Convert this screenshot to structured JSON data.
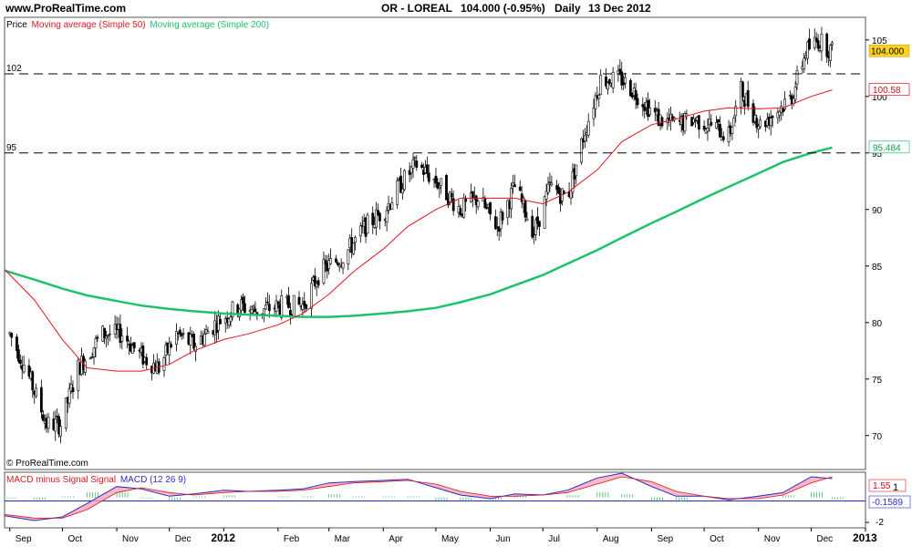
{
  "header": {
    "site": "www.ProRealTime.com",
    "instrument": "OR - LOREAL",
    "last_quote": "104.000 (-0.95%)",
    "period": "Daily",
    "date": "13 Dec 2012"
  },
  "price_panel": {
    "legend_price": "Price",
    "legend_ma50": "Moving average (Simple 50)",
    "legend_ma200": "Moving average (Simple 200)",
    "copyright": "© ProRealTime.com",
    "last_price_label": "104.000",
    "ma50_label": "100.58",
    "ma200_label": "95.484",
    "hline_upper_label": "102",
    "hline_lower_label": "95",
    "colors": {
      "candle": "#000000",
      "ma50": "#e0161e",
      "ma200": "#1ec26a",
      "last_price_bg": "#ffd21f"
    }
  },
  "macd_panel": {
    "legend_hist": "MACD minus Signal Signal",
    "legend_macd": "MACD (12 26 9)",
    "value_label_1": "1.55",
    "value_label_2": "1",
    "value_label_3": "-0.1589",
    "y_ticks": [
      "0",
      "-2"
    ]
  },
  "x_axis_labels": [
    "Sep",
    "Oct",
    "Nov",
    "Dec",
    "2012",
    "Feb",
    "Mar",
    "Apr",
    "May",
    "Jun",
    "Jul",
    "Aug",
    "Sep",
    "Oct",
    "Nov",
    "Dec",
    "2013"
  ],
  "chart_data": [
    {
      "type": "candlestick",
      "title": "OR - LOREAL",
      "x_range": [
        "2011-08-29",
        "2013-01-01"
      ],
      "ylim": [
        67,
        107
      ],
      "y_ticks": [
        70,
        75,
        80,
        85,
        90,
        95,
        100,
        105
      ],
      "horizontal_lines": [
        102,
        95
      ],
      "anchor_prices": [
        [
          "2011-09-01",
          79
        ],
        [
          "2011-09-10",
          76
        ],
        [
          "2011-09-22",
          71
        ],
        [
          "2011-09-30",
          71
        ],
        [
          "2011-10-10",
          76
        ],
        [
          "2011-10-24",
          79
        ],
        [
          "2011-11-04",
          79
        ],
        [
          "2011-11-15",
          77
        ],
        [
          "2011-11-25",
          76
        ],
        [
          "2011-12-05",
          79
        ],
        [
          "2011-12-15",
          78
        ],
        [
          "2011-12-28",
          80
        ],
        [
          "2012-01-10",
          81.5
        ],
        [
          "2012-01-20",
          81
        ],
        [
          "2012-02-03",
          81.5
        ],
        [
          "2012-02-15",
          81.5
        ],
        [
          "2012-02-25",
          84.5
        ],
        [
          "2012-03-10",
          86
        ],
        [
          "2012-03-22",
          88.5
        ],
        [
          "2012-04-02",
          90
        ],
        [
          "2012-04-12",
          92.5
        ],
        [
          "2012-04-20",
          94
        ],
        [
          "2012-05-01",
          92.5
        ],
        [
          "2012-05-15",
          90
        ],
        [
          "2012-05-25",
          91
        ],
        [
          "2012-06-05",
          88.5
        ],
        [
          "2012-06-15",
          92
        ],
        [
          "2012-06-26",
          88
        ],
        [
          "2012-07-05",
          92
        ],
        [
          "2012-07-15",
          91
        ],
        [
          "2012-07-25",
          97
        ],
        [
          "2012-08-03",
          101.5
        ],
        [
          "2012-08-15",
          101.5
        ],
        [
          "2012-08-25",
          100
        ],
        [
          "2012-09-05",
          98
        ],
        [
          "2012-09-15",
          97.5
        ],
        [
          "2012-09-25",
          98
        ],
        [
          "2012-10-05",
          97.5
        ],
        [
          "2012-10-15",
          96.5
        ],
        [
          "2012-10-22",
          100.5
        ],
        [
          "2012-11-02",
          97.5
        ],
        [
          "2012-11-10",
          98.5
        ],
        [
          "2012-11-20",
          100
        ],
        [
          "2012-11-28",
          104
        ],
        [
          "2012-12-05",
          105
        ],
        [
          "2012-12-13",
          104
        ]
      ],
      "series": [
        {
          "name": "Moving average (Simple 50)",
          "points": [
            [
              "2011-08-29",
              84.7
            ],
            [
              "2011-09-15",
              82
            ],
            [
              "2011-10-01",
              78.5
            ],
            [
              "2011-10-15",
              76
            ],
            [
              "2011-11-01",
              75.7
            ],
            [
              "2011-11-15",
              75.7
            ],
            [
              "2011-12-01",
              76.3
            ],
            [
              "2011-12-15",
              77.5
            ],
            [
              "2012-01-01",
              78.5
            ],
            [
              "2012-01-15",
              79
            ],
            [
              "2012-02-01",
              79.8
            ],
            [
              "2012-02-15",
              80.8
            ],
            [
              "2012-03-01",
              82.5
            ],
            [
              "2012-03-15",
              84.5
            ],
            [
              "2012-04-01",
              86.5
            ],
            [
              "2012-04-15",
              88.5
            ],
            [
              "2012-05-01",
              90
            ],
            [
              "2012-05-15",
              91
            ],
            [
              "2012-06-01",
              91
            ],
            [
              "2012-06-15",
              91
            ],
            [
              "2012-07-01",
              90.5
            ],
            [
              "2012-07-15",
              91.5
            ],
            [
              "2012-08-01",
              93.5
            ],
            [
              "2012-08-15",
              96
            ],
            [
              "2012-09-01",
              97.5
            ],
            [
              "2012-09-15",
              98
            ],
            [
              "2012-10-01",
              98.7
            ],
            [
              "2012-10-15",
              99
            ],
            [
              "2012-11-01",
              98.9
            ],
            [
              "2012-11-15",
              99
            ],
            [
              "2012-12-01",
              100
            ],
            [
              "2012-12-13",
              100.58
            ]
          ]
        },
        {
          "name": "Moving average (Simple 200)",
          "points": [
            [
              "2011-08-29",
              84.6
            ],
            [
              "2011-09-15",
              83.8
            ],
            [
              "2011-10-01",
              83
            ],
            [
              "2011-10-15",
              82.4
            ],
            [
              "2011-11-01",
              81.9
            ],
            [
              "2011-11-15",
              81.5
            ],
            [
              "2011-12-01",
              81.2
            ],
            [
              "2011-12-15",
              81
            ],
            [
              "2012-01-01",
              80.8
            ],
            [
              "2012-01-15",
              80.7
            ],
            [
              "2012-02-01",
              80.6
            ],
            [
              "2012-02-15",
              80.5
            ],
            [
              "2012-03-01",
              80.5
            ],
            [
              "2012-03-15",
              80.6
            ],
            [
              "2012-04-01",
              80.8
            ],
            [
              "2012-04-15",
              81
            ],
            [
              "2012-05-01",
              81.3
            ],
            [
              "2012-05-15",
              81.8
            ],
            [
              "2012-06-01",
              82.5
            ],
            [
              "2012-06-15",
              83.3
            ],
            [
              "2012-07-01",
              84.2
            ],
            [
              "2012-07-15",
              85.2
            ],
            [
              "2012-08-01",
              86.4
            ],
            [
              "2012-08-15",
              87.5
            ],
            [
              "2012-09-01",
              88.8
            ],
            [
              "2012-09-15",
              89.8
            ],
            [
              "2012-10-01",
              91
            ],
            [
              "2012-10-15",
              92
            ],
            [
              "2012-11-01",
              93.2
            ],
            [
              "2012-11-15",
              94.2
            ],
            [
              "2012-12-01",
              95
            ],
            [
              "2012-12-13",
              95.484
            ]
          ]
        }
      ]
    },
    {
      "type": "area",
      "title": "MACD (12 26 9)",
      "ylim": [
        -2.5,
        2
      ],
      "y_ticks": [
        0,
        -2
      ],
      "series": [
        {
          "name": "MACD",
          "points": [
            [
              "2011-08-29",
              -1.5
            ],
            [
              "2011-09-15",
              -1.9
            ],
            [
              "2011-10-01",
              -1.6
            ],
            [
              "2011-10-15",
              -0.5
            ],
            [
              "2011-11-01",
              0.9
            ],
            [
              "2011-11-15",
              0.7
            ],
            [
              "2011-12-01",
              0.1
            ],
            [
              "2011-12-15",
              0.3
            ],
            [
              "2012-01-01",
              0.6
            ],
            [
              "2012-01-15",
              0.5
            ],
            [
              "2012-02-01",
              0.6
            ],
            [
              "2012-02-15",
              0.7
            ],
            [
              "2012-03-01",
              1.2
            ],
            [
              "2012-03-15",
              1.3
            ],
            [
              "2012-04-01",
              1.4
            ],
            [
              "2012-04-15",
              1.5
            ],
            [
              "2012-05-01",
              0.8
            ],
            [
              "2012-05-15",
              0.2
            ],
            [
              "2012-06-01",
              -0.1
            ],
            [
              "2012-06-15",
              0.3
            ],
            [
              "2012-07-01",
              0.2
            ],
            [
              "2012-07-15",
              0.6
            ],
            [
              "2012-08-01",
              1.6
            ],
            [
              "2012-08-15",
              2.0
            ],
            [
              "2012-09-01",
              0.9
            ],
            [
              "2012-09-15",
              0.1
            ],
            [
              "2012-10-01",
              0.1
            ],
            [
              "2012-10-15",
              -0.2
            ],
            [
              "2012-11-01",
              0.1
            ],
            [
              "2012-11-15",
              0.4
            ],
            [
              "2012-12-01",
              1.7
            ],
            [
              "2012-12-13",
              1.55
            ]
          ]
        },
        {
          "name": "Signal",
          "points": [
            [
              "2011-08-29",
              -1.4
            ],
            [
              "2011-09-15",
              -1.7
            ],
            [
              "2011-10-01",
              -1.7
            ],
            [
              "2011-10-15",
              -1.0
            ],
            [
              "2011-11-01",
              0.4
            ],
            [
              "2011-11-15",
              0.8
            ],
            [
              "2011-12-01",
              0.4
            ],
            [
              "2011-12-15",
              0.2
            ],
            [
              "2012-01-01",
              0.4
            ],
            [
              "2012-01-15",
              0.5
            ],
            [
              "2012-02-01",
              0.5
            ],
            [
              "2012-02-15",
              0.6
            ],
            [
              "2012-03-01",
              0.9
            ],
            [
              "2012-03-15",
              1.2
            ],
            [
              "2012-04-01",
              1.3
            ],
            [
              "2012-04-15",
              1.4
            ],
            [
              "2012-05-01",
              1.1
            ],
            [
              "2012-05-15",
              0.5
            ],
            [
              "2012-06-01",
              0.1
            ],
            [
              "2012-06-15",
              0.1
            ],
            [
              "2012-07-01",
              0.2
            ],
            [
              "2012-07-15",
              0.4
            ],
            [
              "2012-08-01",
              1.1
            ],
            [
              "2012-08-15",
              1.7
            ],
            [
              "2012-09-01",
              1.3
            ],
            [
              "2012-09-15",
              0.5
            ],
            [
              "2012-10-01",
              0.1
            ],
            [
              "2012-10-15",
              -0.1
            ],
            [
              "2012-11-01",
              -0.1
            ],
            [
              "2012-11-15",
              0.2
            ],
            [
              "2012-12-01",
              1.2
            ],
            [
              "2012-12-13",
              1.7
            ]
          ]
        }
      ]
    }
  ]
}
